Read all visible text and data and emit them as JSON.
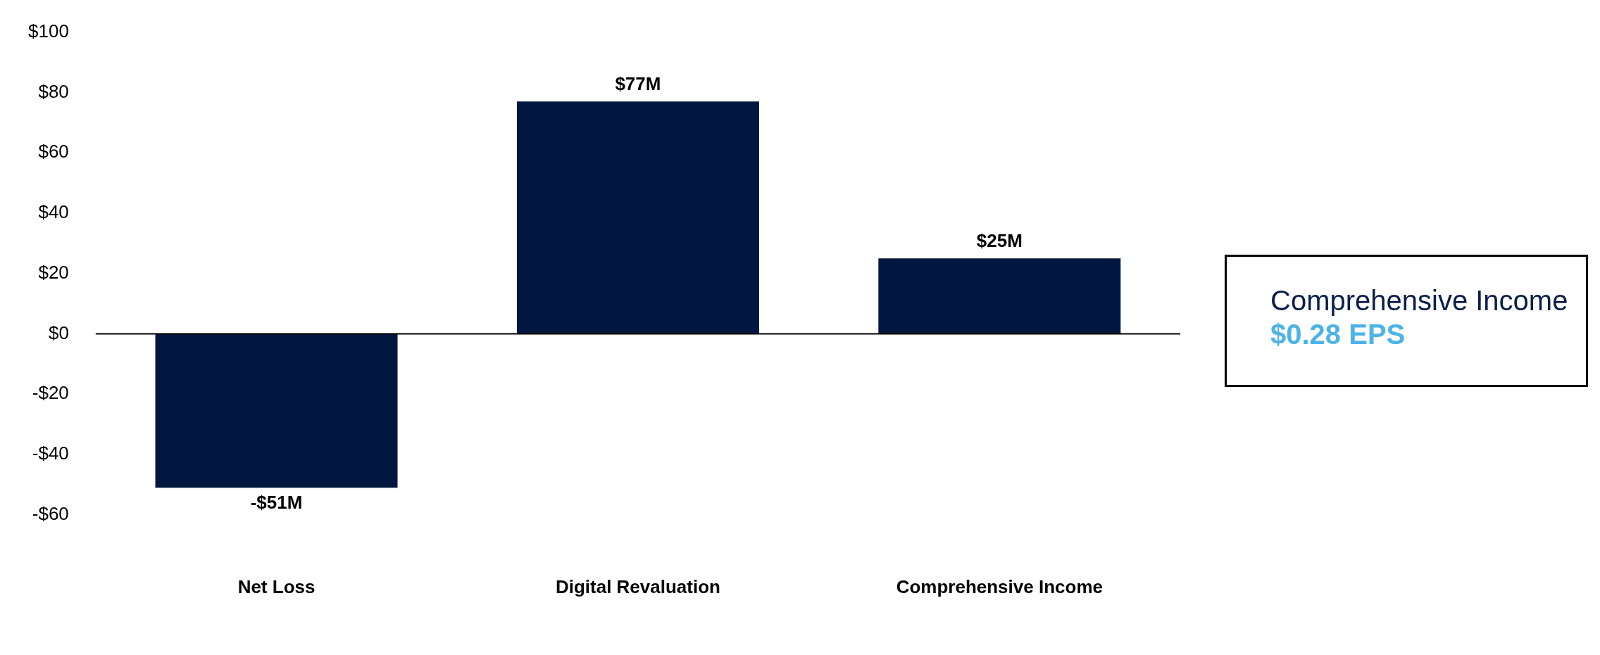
{
  "chart_data": {
    "type": "bar",
    "categories": [
      "Net Loss",
      "Digital Revaluation",
      "Comprehensive Income"
    ],
    "values": [
      -51,
      77,
      25
    ],
    "color": "#02173f",
    "value_labels": [
      "-$51M",
      "$77M",
      "$25M"
    ],
    "ylim": [
      -60,
      100
    ],
    "yticks": [
      {
        "value": -60,
        "label": "-$60"
      },
      {
        "value": -40,
        "label": "-$40"
      },
      {
        "value": -20,
        "label": "-$20"
      },
      {
        "value": 0,
        "label": "$0"
      },
      {
        "value": 20,
        "label": "$20"
      },
      {
        "value": 40,
        "label": "$40"
      },
      {
        "value": 60,
        "label": "$60"
      },
      {
        "value": 80,
        "label": "$80"
      },
      {
        "value": 100,
        "label": "$100"
      }
    ],
    "annotations": [
      "Comprehensive Income",
      "$0.28 EPS"
    ]
  }
}
